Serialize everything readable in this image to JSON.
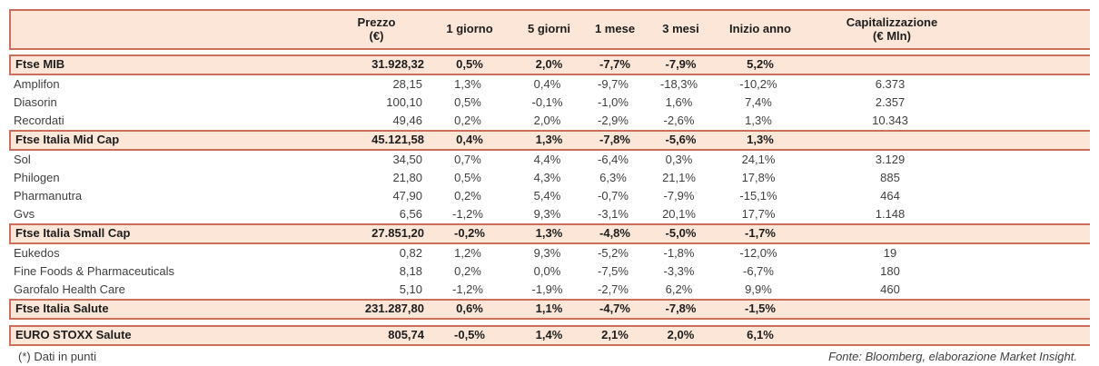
{
  "table": {
    "headers": {
      "name": "",
      "prezzo": "Prezzo\n(€)",
      "d1": "1 giorno",
      "d5": "5 giorni",
      "m1": "1 mese",
      "m3": "3 mesi",
      "ytd": "Inizio anno",
      "cap": "Capitalizzazione\n(€ Mln)"
    },
    "rows": [
      {
        "type": "index",
        "name": "Ftse MIB",
        "prezzo": "31.928,32",
        "d1": "0,5%",
        "d5": "2,0%",
        "m1": "-7,7%",
        "m3": "-7,9%",
        "ytd": "5,2%",
        "cap": ""
      },
      {
        "type": "stock",
        "name": "Amplifon",
        "prezzo": "28,15",
        "d1": "1,3%",
        "d5": "0,4%",
        "m1": "-9,7%",
        "m3": "-18,3%",
        "ytd": "-10,2%",
        "cap": "6.373"
      },
      {
        "type": "stock",
        "name": "Diasorin",
        "prezzo": "100,10",
        "d1": "0,5%",
        "d5": "-0,1%",
        "m1": "-1,0%",
        "m3": "1,6%",
        "ytd": "7,4%",
        "cap": "2.357"
      },
      {
        "type": "stock",
        "name": "Recordati",
        "prezzo": "49,46",
        "d1": "0,2%",
        "d5": "2,0%",
        "m1": "-2,9%",
        "m3": "-2,6%",
        "ytd": "1,3%",
        "cap": "10.343"
      },
      {
        "type": "index",
        "name": "Ftse Italia Mid Cap",
        "prezzo": "45.121,58",
        "d1": "0,4%",
        "d5": "1,3%",
        "m1": "-7,8%",
        "m3": "-5,6%",
        "ytd": "1,3%",
        "cap": ""
      },
      {
        "type": "stock",
        "name": "Sol",
        "prezzo": "34,50",
        "d1": "0,7%",
        "d5": "4,4%",
        "m1": "-6,4%",
        "m3": "0,3%",
        "ytd": "24,1%",
        "cap": "3.129"
      },
      {
        "type": "stock",
        "name": "Philogen",
        "prezzo": "21,80",
        "d1": "0,5%",
        "d5": "4,3%",
        "m1": "6,3%",
        "m3": "21,1%",
        "ytd": "17,8%",
        "cap": "885"
      },
      {
        "type": "stock",
        "name": "Pharmanutra",
        "prezzo": "47,90",
        "d1": "0,2%",
        "d5": "5,4%",
        "m1": "-0,7%",
        "m3": "-7,9%",
        "ytd": "-15,1%",
        "cap": "464"
      },
      {
        "type": "stock",
        "name": "Gvs",
        "prezzo": "6,56",
        "d1": "-1,2%",
        "d5": "9,3%",
        "m1": "-3,1%",
        "m3": "20,1%",
        "ytd": "17,7%",
        "cap": "1.148"
      },
      {
        "type": "index",
        "name": "Ftse Italia Small Cap",
        "prezzo": "27.851,20",
        "d1": "-0,2%",
        "d5": "1,3%",
        "m1": "-4,8%",
        "m3": "-5,0%",
        "ytd": "-1,7%",
        "cap": ""
      },
      {
        "type": "stock",
        "name": "Eukedos",
        "prezzo": "0,82",
        "d1": "1,2%",
        "d5": "9,3%",
        "m1": "-5,2%",
        "m3": "-1,8%",
        "ytd": "-12,0%",
        "cap": "19"
      },
      {
        "type": "stock",
        "name": "Fine Foods & Pharmaceuticals",
        "prezzo": "8,18",
        "d1": "0,2%",
        "d5": "0,0%",
        "m1": "-7,5%",
        "m3": "-3,3%",
        "ytd": "-6,7%",
        "cap": "180"
      },
      {
        "type": "stock",
        "name": "Garofalo Health Care",
        "prezzo": "5,10",
        "d1": "-1,2%",
        "d5": "-1,9%",
        "m1": "-2,7%",
        "m3": "6,2%",
        "ytd": "9,9%",
        "cap": "460"
      },
      {
        "type": "index",
        "name": "Ftse Italia Salute",
        "prezzo": "231.287,80",
        "d1": "0,6%",
        "d5": "1,1%",
        "m1": "-4,7%",
        "m3": "-7,8%",
        "ytd": "-1,5%",
        "cap": ""
      },
      {
        "type": "index",
        "name": "EURO STOXX Salute",
        "prezzo": "805,74",
        "d1": "-0,5%",
        "d5": "1,4%",
        "m1": "2,1%",
        "m3": "2,0%",
        "ytd": "6,1%",
        "cap": ""
      }
    ]
  },
  "footer": {
    "note": "(*) Dati in punti",
    "source": "Fonte: Bloomberg, elaborazione Market Insight."
  },
  "colors": {
    "border": "#c96f5a",
    "row_bg": "#fbe6d7",
    "text": "#3f3f3f"
  }
}
